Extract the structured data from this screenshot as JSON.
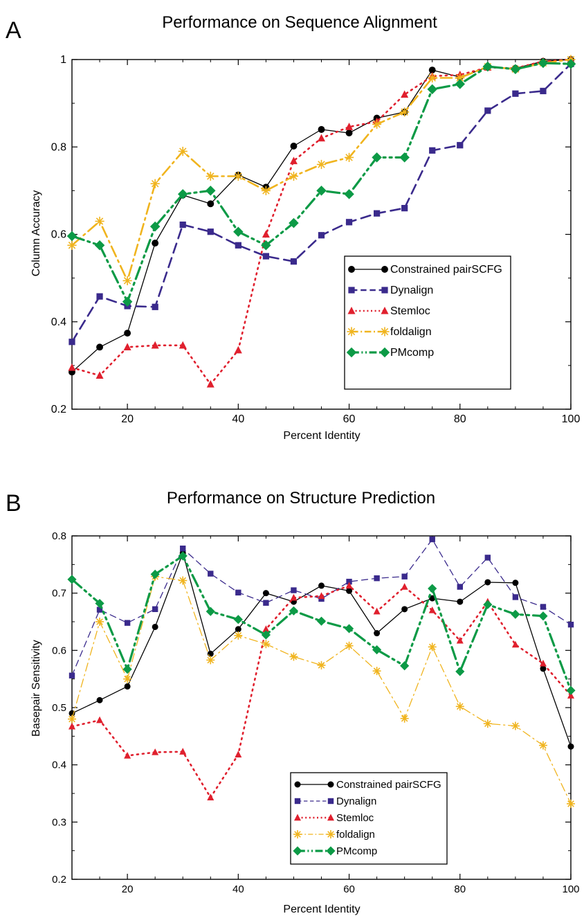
{
  "chart_data": [
    {
      "panel_label": "A",
      "type": "line",
      "title": "Performance on Sequence Alignment",
      "xlabel": "Percent Identity",
      "ylabel": "Column Accuracy",
      "xlim": [
        10,
        100
      ],
      "ylim": [
        0.2,
        1.0
      ],
      "xticks": [
        20,
        40,
        60,
        80,
        100
      ],
      "xtick_labels": [
        "20",
        "40",
        "60",
        "80",
        "100"
      ],
      "yticks": [
        0.2,
        0.4,
        0.6,
        0.8,
        1.0
      ],
      "ytick_labels": [
        "0.2",
        "0.4",
        "0.6",
        "0.8",
        "1"
      ],
      "legend_position": "center-right",
      "grid": false,
      "x": [
        10,
        15,
        20,
        25,
        30,
        35,
        40,
        45,
        50,
        55,
        60,
        65,
        70,
        75,
        80,
        85,
        90,
        95,
        100
      ],
      "series": [
        {
          "name": "Constrained pairSCFG",
          "color": "#000000",
          "dash": "",
          "width": 1.3,
          "marker": "circle",
          "values": [
            0.285,
            0.342,
            0.374,
            0.58,
            0.69,
            0.67,
            0.736,
            0.708,
            0.802,
            0.84,
            0.832,
            0.866,
            0.88,
            0.976,
            0.96,
            0.982,
            0.98,
            0.996,
            1.0
          ]
        },
        {
          "name": "Dynalign",
          "color": "#3a2a8c",
          "dash": "14,8",
          "width": 2.6,
          "marker": "square",
          "values": [
            0.354,
            0.458,
            0.436,
            0.434,
            0.622,
            0.606,
            0.575,
            0.55,
            0.538,
            0.598,
            0.628,
            0.648,
            0.66,
            0.792,
            0.804,
            0.883,
            0.922,
            0.928,
            0.99
          ]
        },
        {
          "name": "Stemloc",
          "color": "#e0202e",
          "dash": "2,6",
          "width": 2.6,
          "marker": "triangle",
          "values": [
            0.295,
            0.277,
            0.342,
            0.346,
            0.346,
            0.257,
            0.335,
            0.6,
            0.768,
            0.82,
            0.846,
            0.858,
            0.92,
            0.962,
            0.965,
            0.982,
            0.98,
            0.996,
            1.0
          ]
        },
        {
          "name": "foldalign",
          "color": "#f0b41e",
          "dash": "16,6,3,6",
          "width": 2.6,
          "marker": "asterisk",
          "values": [
            0.575,
            0.63,
            0.494,
            0.716,
            0.79,
            0.733,
            0.733,
            0.7,
            0.733,
            0.76,
            0.776,
            0.852,
            0.88,
            0.958,
            0.958,
            0.984,
            0.978,
            0.992,
            1.0
          ]
        },
        {
          "name": "PMcomp",
          "color": "#0c9a46",
          "dash": "18,6,3,6,3,6",
          "width": 3.2,
          "marker": "diamond",
          "values": [
            0.596,
            0.575,
            0.446,
            0.618,
            0.692,
            0.7,
            0.606,
            0.575,
            0.626,
            0.7,
            0.692,
            0.776,
            0.776,
            0.932,
            0.944,
            0.984,
            0.978,
            0.992,
            0.99
          ]
        }
      ]
    },
    {
      "panel_label": "B",
      "type": "line",
      "title": "Performance on Structure Prediction",
      "xlabel": "Percent Identity",
      "ylabel": "Basepair Sensitivity",
      "xlim": [
        10,
        100
      ],
      "ylim": [
        0.2,
        0.8
      ],
      "xticks": [
        20,
        40,
        60,
        80,
        100
      ],
      "xtick_labels": [
        "20",
        "40",
        "60",
        "80",
        "100"
      ],
      "yticks": [
        0.2,
        0.3,
        0.4,
        0.5,
        0.6,
        0.7,
        0.8
      ],
      "ytick_labels": [
        "0.2",
        "0.3",
        "0.4",
        "0.5",
        "0.6",
        "0.7",
        "0.8"
      ],
      "legend_position": "bottom-center",
      "grid": false,
      "x": [
        10,
        15,
        20,
        25,
        30,
        35,
        40,
        45,
        50,
        55,
        60,
        65,
        70,
        75,
        80,
        85,
        90,
        95,
        100
      ],
      "series": [
        {
          "name": "Constrained pairSCFG",
          "color": "#000000",
          "dash": "",
          "width": 1.3,
          "marker": "circle",
          "values": [
            0.49,
            0.513,
            0.537,
            0.641,
            0.77,
            0.594,
            0.637,
            0.7,
            0.685,
            0.713,
            0.704,
            0.63,
            0.672,
            0.691,
            0.685,
            0.719,
            0.718,
            0.568,
            0.432
          ]
        },
        {
          "name": "Dynalign",
          "color": "#3a2a8c",
          "dash": "9,6",
          "width": 1.3,
          "marker": "square",
          "values": [
            0.556,
            0.671,
            0.648,
            0.672,
            0.778,
            0.734,
            0.701,
            0.683,
            0.705,
            0.69,
            0.72,
            0.726,
            0.729,
            0.794,
            0.711,
            0.762,
            0.693,
            0.676,
            0.645
          ]
        },
        {
          "name": "Stemloc",
          "color": "#e0202e",
          "dash": "2,6",
          "width": 2.6,
          "marker": "triangle",
          "values": [
            0.467,
            0.478,
            0.416,
            0.422,
            0.423,
            0.343,
            0.418,
            0.637,
            0.692,
            0.695,
            0.713,
            0.668,
            0.711,
            0.67,
            0.617,
            0.685,
            0.61,
            0.577,
            0.521
          ]
        },
        {
          "name": "foldalign",
          "color": "#f0b41e",
          "dash": "12,5,2,5",
          "width": 1.3,
          "marker": "asterisk",
          "values": [
            0.48,
            0.65,
            0.55,
            0.729,
            0.722,
            0.583,
            0.626,
            0.611,
            0.589,
            0.574,
            0.608,
            0.564,
            0.481,
            0.606,
            0.502,
            0.472,
            0.468,
            0.434,
            0.332
          ]
        },
        {
          "name": "PMcomp",
          "color": "#0c9a46",
          "dash": "18,6,3,6,3,6",
          "width": 3.2,
          "marker": "diamond",
          "values": [
            0.724,
            0.682,
            0.567,
            0.733,
            0.765,
            0.668,
            0.654,
            0.627,
            0.669,
            0.651,
            0.638,
            0.601,
            0.573,
            0.708,
            0.563,
            0.68,
            0.663,
            0.66,
            0.53
          ]
        }
      ]
    }
  ]
}
